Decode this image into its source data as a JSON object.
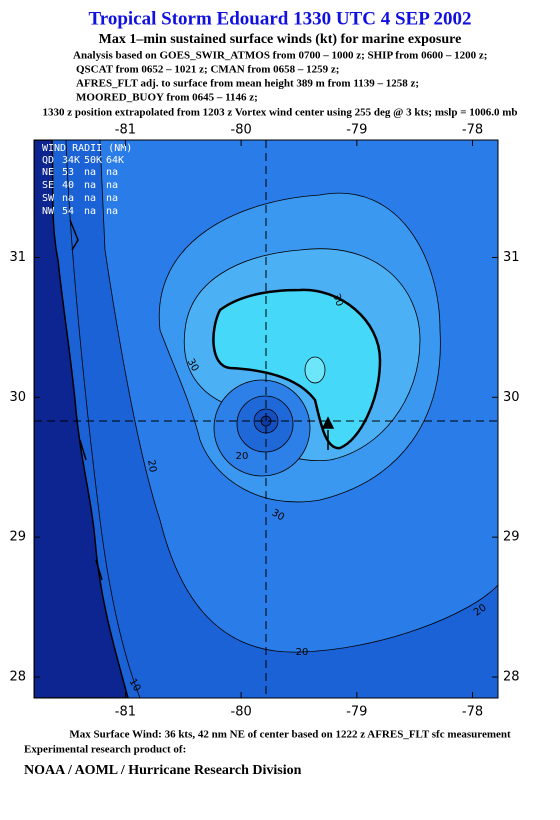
{
  "header": {
    "title": "Tropical Storm Edouard 1330 UTC 4 SEP 2002",
    "subtitle": "Max 1–min sustained surface winds (kt) for marine exposure",
    "lines": [
      "Analysis based on  GOES_SWIR_ATMOS from 0700 – 1000 z;  SHIP from 0600 – 1200 z;",
      "QSCAT from 0652 – 1021 z;  CMAN from 0658 – 1259 z;",
      "AFRES_FLT adj. to surface from mean height 389 m from 1139 – 1258 z;",
      "MOORED_BUOY from 0645 – 1146 z;"
    ],
    "position_note": "1330 z position extrapolated from 1203 z Vortex wind center using 255 deg @ 3 kts; mslp = 1006.0 mb"
  },
  "map": {
    "lonlim": [
      -81.79,
      -77.78
    ],
    "latlim": [
      27.85,
      31.84
    ],
    "lon_ticks": [
      -81,
      -80,
      -79,
      -78
    ],
    "lat_ticks": [
      31,
      30,
      29,
      28
    ],
    "wind_radii": {
      "title": "WIND RADII (NM)",
      "header": [
        "QD",
        "34K",
        "50K",
        "64K"
      ],
      "rows": [
        [
          "NE",
          "53",
          "na",
          "na"
        ],
        [
          "SE",
          "40",
          "na",
          "na"
        ],
        [
          "SW",
          "na",
          "na",
          "na"
        ],
        [
          "NW",
          "54",
          "na",
          "na"
        ]
      ]
    },
    "contour_labels": [
      "30",
      "30",
      "20",
      "20",
      "30",
      "20",
      "20",
      "10"
    ]
  },
  "footer": {
    "max_wind": "Max Surface Wind: 36 kts, 42 nm NE of center based on 1222 z AFRES_FLT sfc measurement",
    "note": "Experimental research product of:",
    "org": "NOAA / AOML / Hurricane Research Division"
  }
}
